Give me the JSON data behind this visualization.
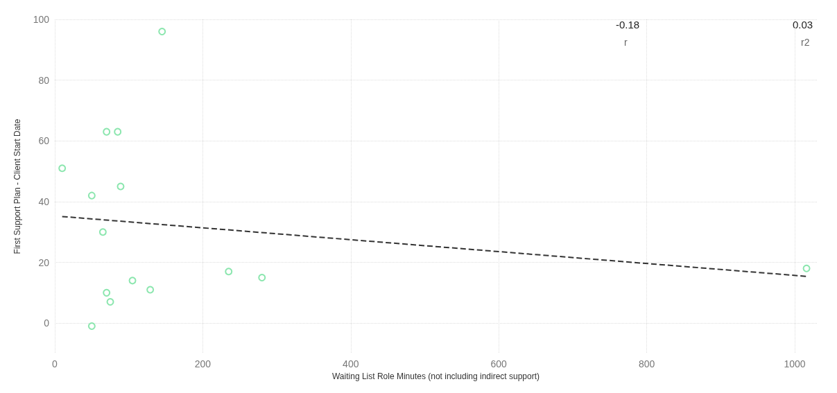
{
  "chart_data": {
    "type": "scatter",
    "xlabel": "Waiting List Role Minutes (not including indirect support)",
    "ylabel": "First Support Plan - Client Start Date",
    "xlim": [
      0,
      1030
    ],
    "xticks": [
      0,
      200,
      400,
      600,
      800,
      1000
    ],
    "ylim": [
      -10,
      100
    ],
    "yticks": [
      0,
      20,
      40,
      60,
      80,
      100
    ],
    "grid": true,
    "marker": "circle",
    "series": [
      {
        "type": "scatter",
        "color": "#6ee09a",
        "x": [
          145,
          10,
          50,
          70,
          85,
          89,
          65,
          70,
          75,
          105,
          129,
          50,
          235,
          280,
          1016
        ],
        "values": [
          96,
          51,
          42,
          63,
          63,
          45,
          30,
          10,
          7,
          14,
          11,
          -1,
          17,
          15,
          18
        ]
      },
      {
        "type": "line",
        "color": "#333333",
        "line_style": "dashed",
        "marker": "none",
        "x": [
          10,
          1016
        ],
        "values": [
          35.1,
          15.4
        ]
      }
    ],
    "annotations": [
      "-0.18",
      "r",
      "0.03",
      "r2"
    ]
  }
}
